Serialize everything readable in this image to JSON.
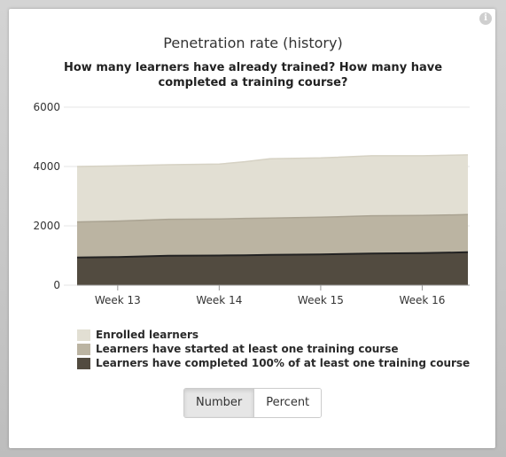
{
  "header": {
    "title": "Penetration rate (history)",
    "subtitle": "How many learners have already trained? How many have completed a training course?"
  },
  "info_icon": "info-icon",
  "chart_data": {
    "type": "area",
    "x": [
      "Week 12.5",
      "Week 13",
      "Week 13.5",
      "Week 14",
      "Week 14.25",
      "Week 14.5",
      "Week 15",
      "Week 15.5",
      "Week 16",
      "Week 16.4"
    ],
    "x_tick_labels": [
      "Week 13",
      "Week 14",
      "Week 15",
      "Week 16"
    ],
    "x_tick_values": [
      13,
      14,
      15,
      16
    ],
    "x_values": [
      12.6,
      13,
      13.5,
      14,
      14.25,
      14.5,
      15,
      15.5,
      16,
      16.45
    ],
    "ylim": [
      0,
      6000
    ],
    "y_ticks": [
      0,
      2000,
      4000,
      6000
    ],
    "stacked": false,
    "series": [
      {
        "name": "Enrolled learners",
        "color": "#e2dfd3",
        "values": [
          4000,
          4020,
          4060,
          4080,
          4160,
          4260,
          4290,
          4360,
          4360,
          4390
        ]
      },
      {
        "name": "Learners have started at least one training course",
        "color": "#bbb4a2",
        "values": [
          2130,
          2160,
          2220,
          2230,
          2250,
          2260,
          2290,
          2340,
          2350,
          2380
        ]
      },
      {
        "name": "Learners have completed 100% of at least one training course",
        "color": "#524b40",
        "values": [
          930,
          950,
          990,
          1000,
          1010,
          1020,
          1040,
          1070,
          1080,
          1110
        ]
      }
    ],
    "legend_position": "bottom-left",
    "grid": true
  },
  "toggle": {
    "number_label": "Number",
    "percent_label": "Percent",
    "selected": "Number"
  }
}
